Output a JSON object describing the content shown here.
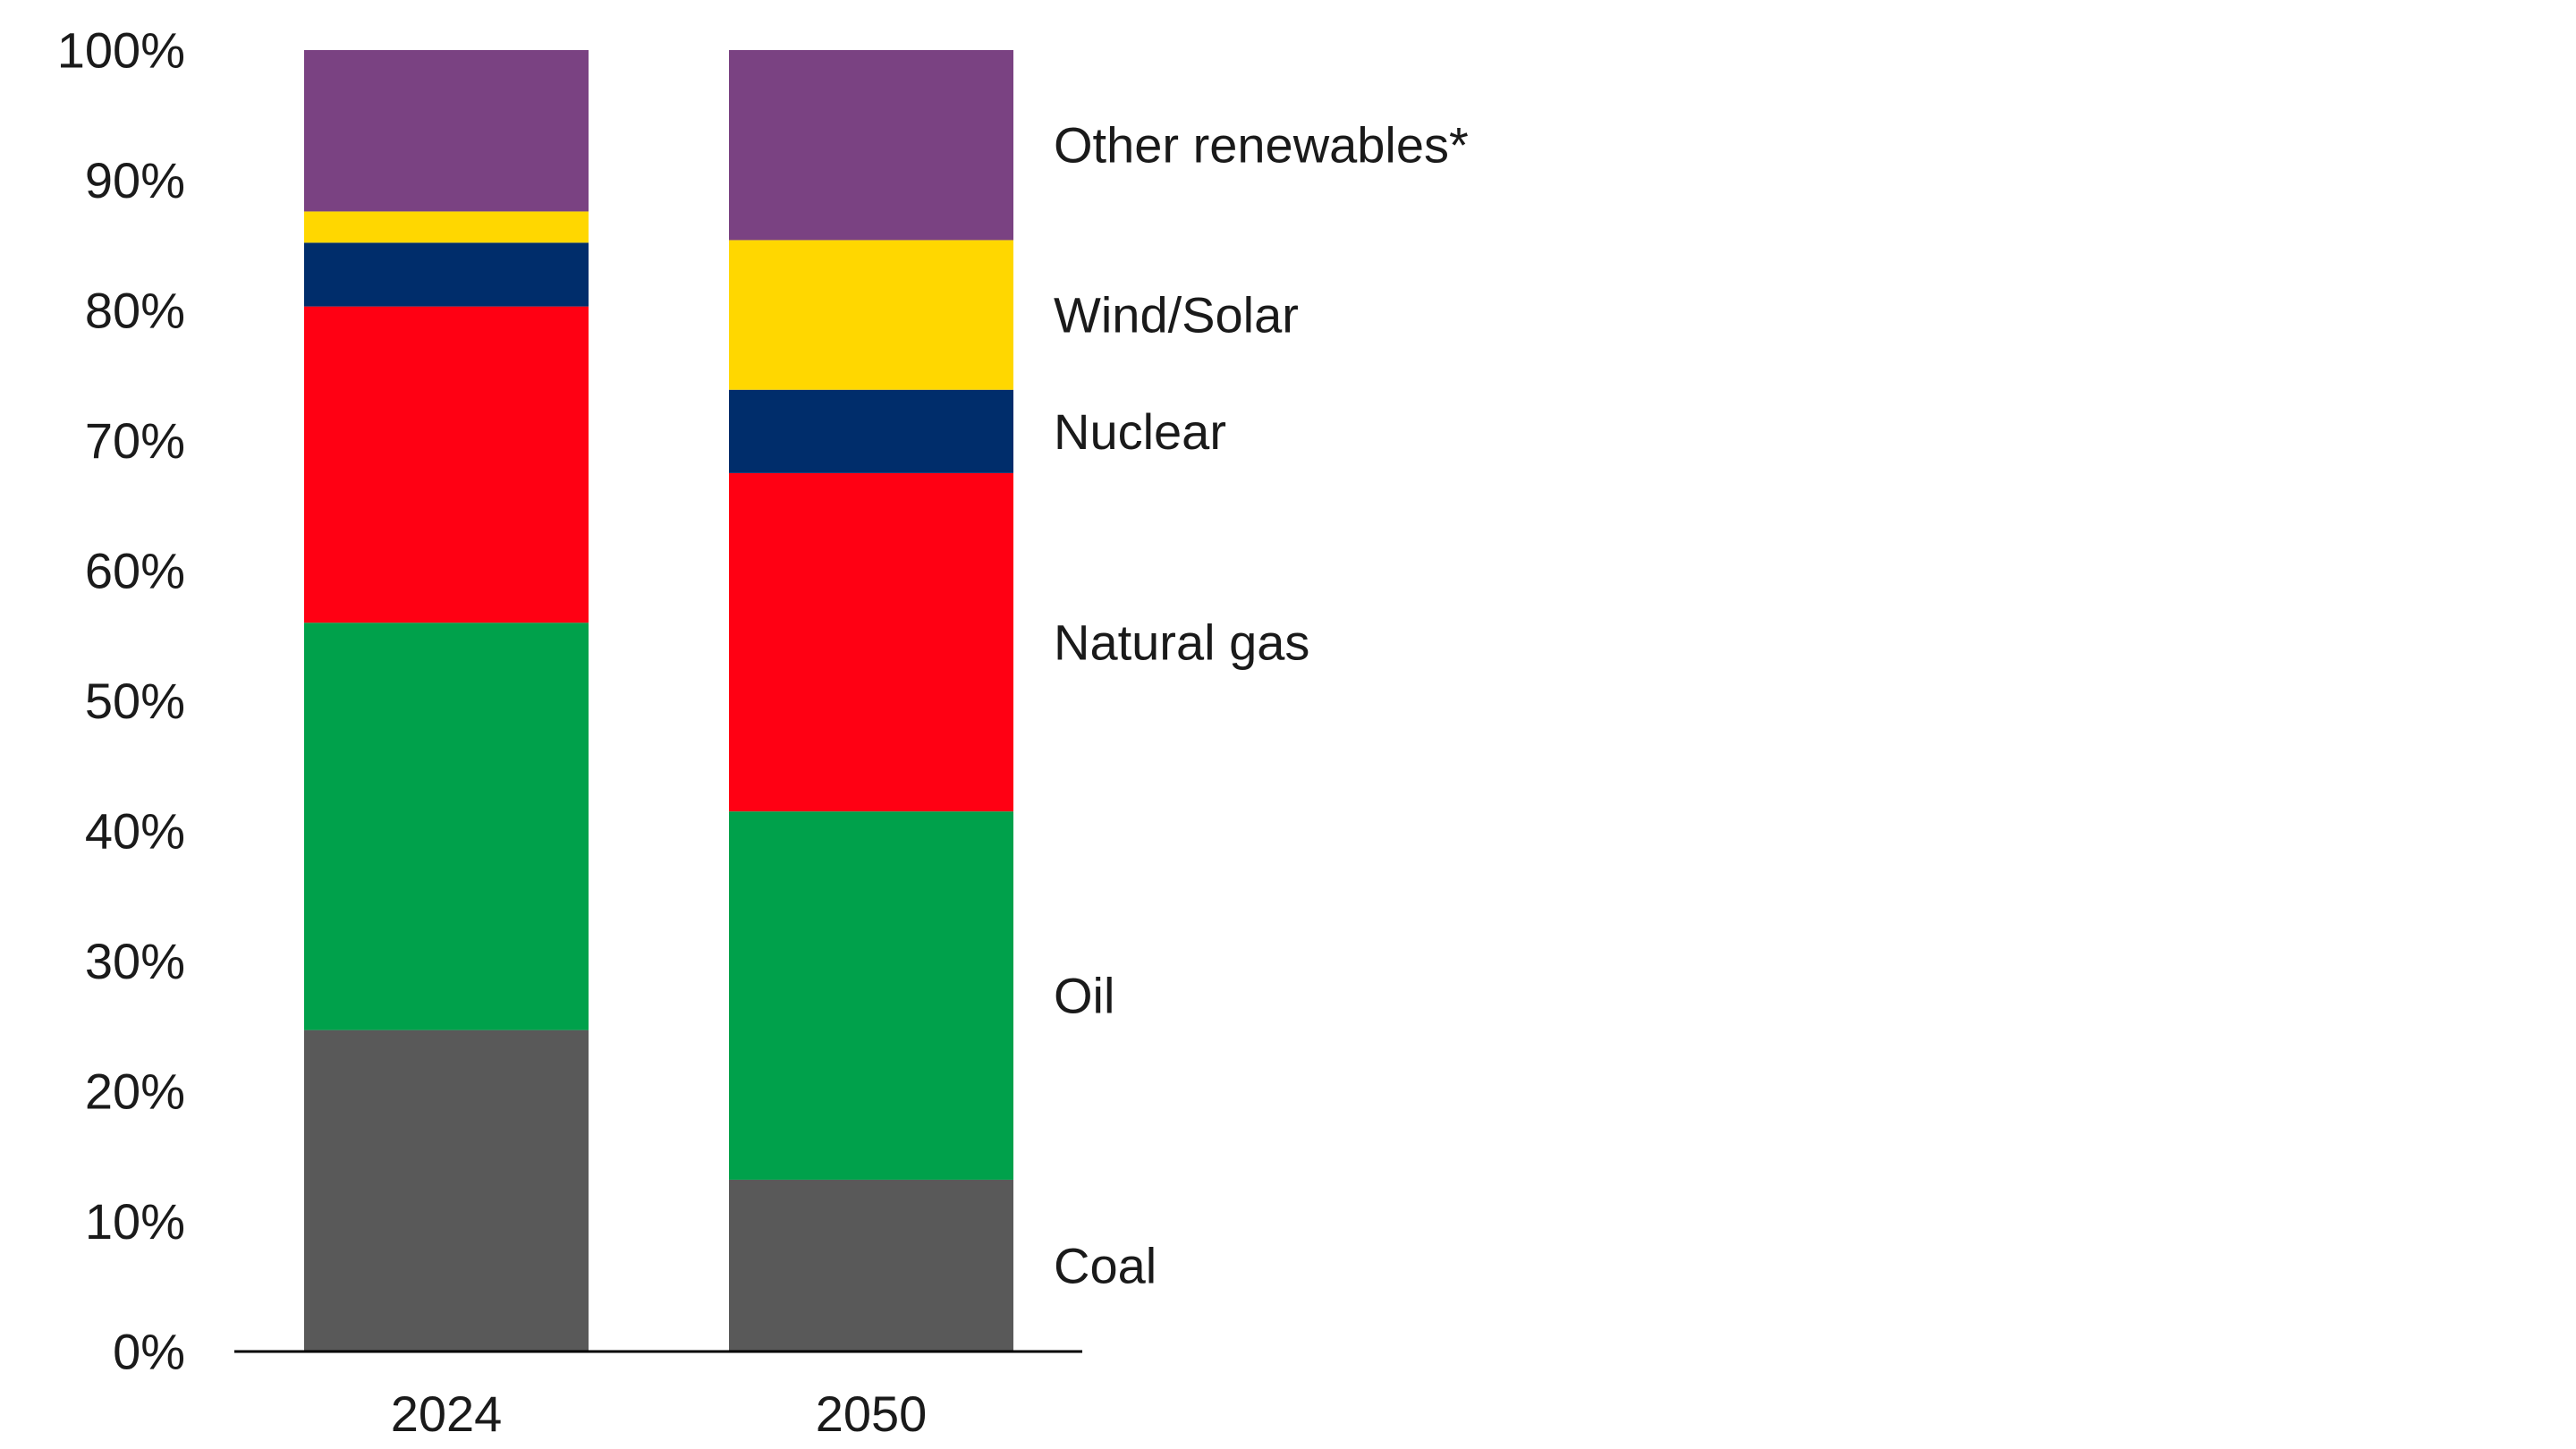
{
  "chart_data": {
    "type": "bar",
    "stacked": true,
    "categories": [
      "2024",
      "2050"
    ],
    "series": [
      {
        "name": "Coal",
        "color": "#595959",
        "values": [
          24.7,
          13.2
        ]
      },
      {
        "name": "Oil",
        "color": "#00a14b",
        "values": [
          31.3,
          28.3
        ]
      },
      {
        "name": "Natural gas",
        "color": "#ff0013",
        "values": [
          24.3,
          26.0
        ]
      },
      {
        "name": "Nuclear",
        "color": "#002d6b",
        "values": [
          4.9,
          6.4
        ]
      },
      {
        "name": "Wind/Solar",
        "color": "#ffd700",
        "values": [
          2.4,
          11.5
        ]
      },
      {
        "name": "Other renewables*",
        "color": "#7a4282",
        "values": [
          12.4,
          14.6
        ]
      }
    ],
    "yticks": [
      "0%",
      "10%",
      "20%",
      "30%",
      "40%",
      "50%",
      "60%",
      "70%",
      "80%",
      "90%",
      "100%"
    ],
    "ylim": [
      0,
      100
    ],
    "title": "",
    "xlabel": "",
    "ylabel": "",
    "legend": "right (labels beside last bar)",
    "grid": false
  }
}
